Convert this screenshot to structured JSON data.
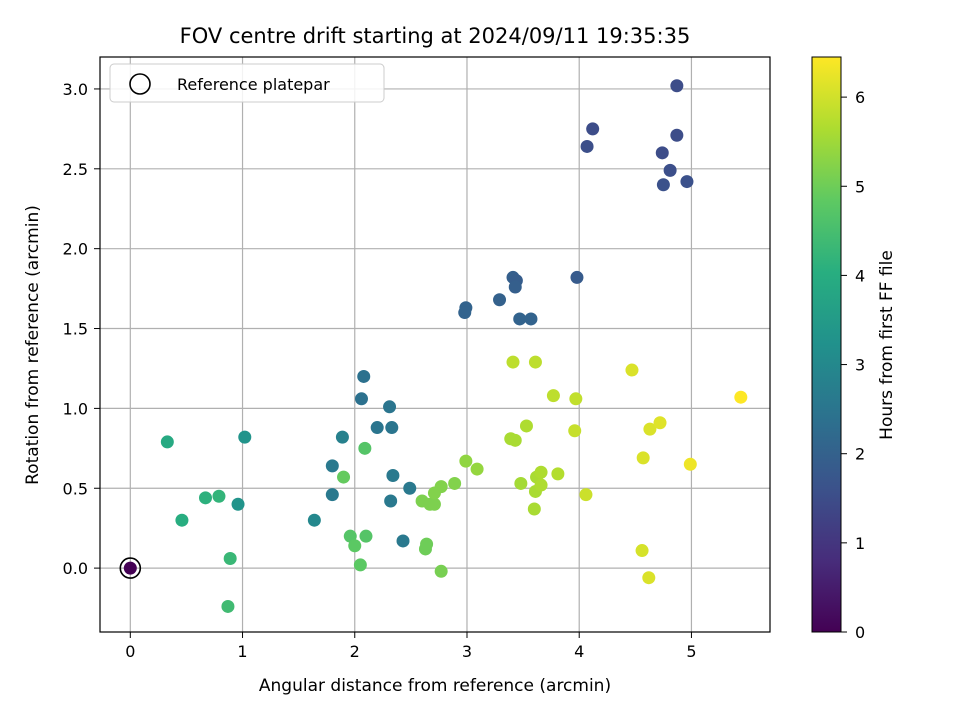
{
  "chart_data": {
    "type": "scatter",
    "title": "FOV centre drift starting at 2024/09/11 19:35:35",
    "xlabel": "Angular distance from reference (arcmin)",
    "ylabel": "Rotation from reference (arcmin)",
    "xlim": [
      -0.27,
      5.7
    ],
    "ylim": [
      -0.4,
      3.2
    ],
    "xticks": [
      0,
      1,
      2,
      3,
      4,
      5
    ],
    "yticks": [
      0.0,
      0.5,
      1.0,
      1.5,
      2.0,
      2.5,
      3.0
    ],
    "xtick_labels": [
      "0",
      "1",
      "2",
      "3",
      "4",
      "5"
    ],
    "ytick_labels": [
      "0.0",
      "0.5",
      "1.0",
      "1.5",
      "2.0",
      "2.5",
      "3.0"
    ],
    "grid": true,
    "legend": {
      "placement": "top-left",
      "entries": [
        "Reference platepar"
      ]
    },
    "colorbar": {
      "label": "Hours from first FF file",
      "range": [
        0,
        6.45
      ],
      "ticks": [
        0,
        1,
        2,
        3,
        4,
        5,
        6
      ],
      "tick_labels": [
        "0",
        "1",
        "2",
        "3",
        "4",
        "5",
        "6"
      ],
      "colormap": "viridis"
    },
    "reference_point": {
      "x": 0,
      "y": 0,
      "hours": 0
    },
    "points": [
      {
        "x": 4.87,
        "y": 3.02,
        "hours": 1.5
      },
      {
        "x": 4.12,
        "y": 2.75,
        "hours": 1.5
      },
      {
        "x": 4.07,
        "y": 2.64,
        "hours": 1.55
      },
      {
        "x": 4.87,
        "y": 2.71,
        "hours": 1.5
      },
      {
        "x": 4.74,
        "y": 2.6,
        "hours": 1.5
      },
      {
        "x": 4.81,
        "y": 2.49,
        "hours": 1.55
      },
      {
        "x": 4.75,
        "y": 2.4,
        "hours": 1.6
      },
      {
        "x": 4.96,
        "y": 2.42,
        "hours": 1.6
      },
      {
        "x": 3.41,
        "y": 1.82,
        "hours": 1.95
      },
      {
        "x": 3.44,
        "y": 1.8,
        "hours": 1.9
      },
      {
        "x": 3.43,
        "y": 1.76,
        "hours": 1.95
      },
      {
        "x": 3.98,
        "y": 1.82,
        "hours": 1.85
      },
      {
        "x": 3.29,
        "y": 1.68,
        "hours": 2.0
      },
      {
        "x": 2.99,
        "y": 1.63,
        "hours": 2.05
      },
      {
        "x": 2.98,
        "y": 1.6,
        "hours": 2.05
      },
      {
        "x": 3.47,
        "y": 1.56,
        "hours": 2.05
      },
      {
        "x": 3.57,
        "y": 1.56,
        "hours": 2.05
      },
      {
        "x": 2.08,
        "y": 1.2,
        "hours": 2.4
      },
      {
        "x": 2.06,
        "y": 1.06,
        "hours": 2.4
      },
      {
        "x": 2.31,
        "y": 1.01,
        "hours": 2.5
      },
      {
        "x": 2.2,
        "y": 0.88,
        "hours": 2.5
      },
      {
        "x": 2.33,
        "y": 0.88,
        "hours": 2.5
      },
      {
        "x": 1.89,
        "y": 0.82,
        "hours": 2.8
      },
      {
        "x": 1.8,
        "y": 0.64,
        "hours": 2.6
      },
      {
        "x": 2.34,
        "y": 0.58,
        "hours": 2.6
      },
      {
        "x": 2.49,
        "y": 0.5,
        "hours": 2.6
      },
      {
        "x": 1.8,
        "y": 0.46,
        "hours": 2.6
      },
      {
        "x": 2.32,
        "y": 0.42,
        "hours": 2.6
      },
      {
        "x": 2.43,
        "y": 0.17,
        "hours": 2.6
      },
      {
        "x": 1.64,
        "y": 0.3,
        "hours": 3.0
      },
      {
        "x": 1.02,
        "y": 0.82,
        "hours": 3.3
      },
      {
        "x": 0.96,
        "y": 0.4,
        "hours": 3.3
      },
      {
        "x": 0.33,
        "y": 0.79,
        "hours": 3.9
      },
      {
        "x": 0.46,
        "y": 0.3,
        "hours": 4.0
      },
      {
        "x": 0.67,
        "y": 0.44,
        "hours": 4.1
      },
      {
        "x": 0.79,
        "y": 0.45,
        "hours": 4.2
      },
      {
        "x": 0.89,
        "y": 0.06,
        "hours": 4.3
      },
      {
        "x": 0.87,
        "y": -0.24,
        "hours": 4.4
      },
      {
        "x": 2.09,
        "y": 0.75,
        "hours": 4.7
      },
      {
        "x": 1.9,
        "y": 0.57,
        "hours": 4.9
      },
      {
        "x": 1.96,
        "y": 0.2,
        "hours": 4.7
      },
      {
        "x": 2.1,
        "y": 0.2,
        "hours": 4.7
      },
      {
        "x": 2.0,
        "y": 0.14,
        "hours": 4.8
      },
      {
        "x": 2.05,
        "y": 0.02,
        "hours": 4.8
      },
      {
        "x": 2.64,
        "y": 0.15,
        "hours": 5.0
      },
      {
        "x": 2.63,
        "y": 0.12,
        "hours": 5.0
      },
      {
        "x": 2.77,
        "y": -0.02,
        "hours": 5.1
      },
      {
        "x": 2.6,
        "y": 0.42,
        "hours": 5.15
      },
      {
        "x": 2.67,
        "y": 0.4,
        "hours": 5.15
      },
      {
        "x": 2.71,
        "y": 0.4,
        "hours": 5.15
      },
      {
        "x": 2.71,
        "y": 0.47,
        "hours": 5.2
      },
      {
        "x": 2.77,
        "y": 0.51,
        "hours": 5.2
      },
      {
        "x": 2.89,
        "y": 0.53,
        "hours": 5.2
      },
      {
        "x": 2.99,
        "y": 0.67,
        "hours": 5.35
      },
      {
        "x": 3.09,
        "y": 0.62,
        "hours": 5.4
      },
      {
        "x": 3.48,
        "y": 0.53,
        "hours": 5.55
      },
      {
        "x": 3.6,
        "y": 0.37,
        "hours": 5.6
      },
      {
        "x": 3.62,
        "y": 0.57,
        "hours": 5.6
      },
      {
        "x": 3.61,
        "y": 0.48,
        "hours": 5.6
      },
      {
        "x": 3.66,
        "y": 0.52,
        "hours": 5.65
      },
      {
        "x": 3.66,
        "y": 0.6,
        "hours": 5.65
      },
      {
        "x": 3.81,
        "y": 0.59,
        "hours": 5.7
      },
      {
        "x": 3.39,
        "y": 0.81,
        "hours": 5.6
      },
      {
        "x": 3.43,
        "y": 0.8,
        "hours": 5.6
      },
      {
        "x": 3.53,
        "y": 0.89,
        "hours": 5.65
      },
      {
        "x": 3.41,
        "y": 1.29,
        "hours": 5.8
      },
      {
        "x": 3.61,
        "y": 1.29,
        "hours": 5.8
      },
      {
        "x": 3.77,
        "y": 1.08,
        "hours": 5.8
      },
      {
        "x": 3.97,
        "y": 1.06,
        "hours": 5.85
      },
      {
        "x": 3.96,
        "y": 0.86,
        "hours": 5.9
      },
      {
        "x": 4.06,
        "y": 0.46,
        "hours": 5.95
      },
      {
        "x": 4.47,
        "y": 1.24,
        "hours": 6.1
      },
      {
        "x": 4.63,
        "y": 0.87,
        "hours": 6.1
      },
      {
        "x": 4.72,
        "y": 0.91,
        "hours": 6.15
      },
      {
        "x": 4.57,
        "y": 0.69,
        "hours": 6.1
      },
      {
        "x": 4.99,
        "y": 0.65,
        "hours": 6.3
      },
      {
        "x": 4.56,
        "y": 0.11,
        "hours": 6.05
      },
      {
        "x": 4.62,
        "y": -0.06,
        "hours": 6.1
      },
      {
        "x": 5.44,
        "y": 1.07,
        "hours": 6.45
      }
    ]
  }
}
